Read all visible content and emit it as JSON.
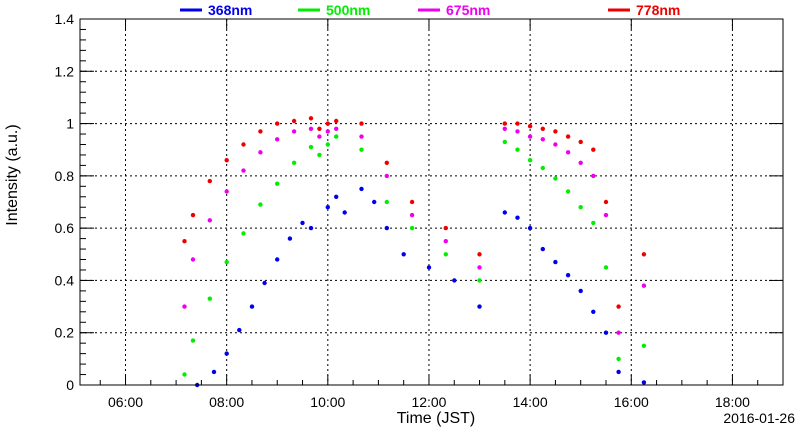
{
  "chart_data": {
    "type": "scatter",
    "xlabel": "Time (JST)",
    "ylabel": "Intensity (a.u.)",
    "date_label": "2016-01-26",
    "xlim": [
      "05:06",
      "19:00"
    ],
    "ylim": [
      0,
      1.4
    ],
    "x_ticks": [
      "06:00",
      "08:00",
      "10:00",
      "12:00",
      "14:00",
      "16:00",
      "18:00"
    ],
    "y_ticks": [
      "0",
      "0.2",
      "0.4",
      "0.6",
      "0.8",
      "1",
      "1.2",
      "1.4"
    ],
    "grid": true,
    "legend_position": "top",
    "series": [
      {
        "name": "368nm",
        "color": "#0000ee",
        "points": [
          [
            "07:25",
            0.0
          ],
          [
            "07:45",
            0.05
          ],
          [
            "08:00",
            0.12
          ],
          [
            "08:15",
            0.21
          ],
          [
            "08:30",
            0.3
          ],
          [
            "08:45",
            0.39
          ],
          [
            "09:00",
            0.48
          ],
          [
            "09:15",
            0.56
          ],
          [
            "09:30",
            0.62
          ],
          [
            "09:40",
            0.6
          ],
          [
            "10:00",
            0.68
          ],
          [
            "10:10",
            0.72
          ],
          [
            "10:20",
            0.66
          ],
          [
            "10:40",
            0.75
          ],
          [
            "10:55",
            0.7
          ],
          [
            "11:10",
            0.6
          ],
          [
            "11:30",
            0.5
          ],
          [
            "12:00",
            0.45
          ],
          [
            "12:30",
            0.4
          ],
          [
            "13:00",
            0.3
          ],
          [
            "13:30",
            0.66
          ],
          [
            "13:45",
            0.64
          ],
          [
            "14:00",
            0.6
          ],
          [
            "14:15",
            0.52
          ],
          [
            "14:30",
            0.47
          ],
          [
            "14:45",
            0.42
          ],
          [
            "15:00",
            0.36
          ],
          [
            "15:15",
            0.28
          ],
          [
            "15:30",
            0.2
          ],
          [
            "15:45",
            0.05
          ],
          [
            "16:15",
            0.01
          ]
        ]
      },
      {
        "name": "500nm",
        "color": "#00ee00",
        "points": [
          [
            "07:10",
            0.04
          ],
          [
            "07:20",
            0.17
          ],
          [
            "07:40",
            0.33
          ],
          [
            "08:00",
            0.47
          ],
          [
            "08:20",
            0.58
          ],
          [
            "08:40",
            0.69
          ],
          [
            "09:00",
            0.77
          ],
          [
            "09:20",
            0.85
          ],
          [
            "09:40",
            0.91
          ],
          [
            "09:50",
            0.88
          ],
          [
            "10:00",
            0.92
          ],
          [
            "10:10",
            0.95
          ],
          [
            "10:40",
            0.9
          ],
          [
            "11:10",
            0.7
          ],
          [
            "11:40",
            0.6
          ],
          [
            "12:20",
            0.5
          ],
          [
            "13:00",
            0.4
          ],
          [
            "13:30",
            0.93
          ],
          [
            "13:45",
            0.9
          ],
          [
            "14:00",
            0.86
          ],
          [
            "14:15",
            0.83
          ],
          [
            "14:30",
            0.79
          ],
          [
            "14:45",
            0.74
          ],
          [
            "15:00",
            0.68
          ],
          [
            "15:15",
            0.62
          ],
          [
            "15:30",
            0.45
          ],
          [
            "15:45",
            0.1
          ],
          [
            "16:15",
            0.15
          ]
        ]
      },
      {
        "name": "675nm",
        "color": "#ee00ee",
        "points": [
          [
            "07:10",
            0.3
          ],
          [
            "07:20",
            0.48
          ],
          [
            "07:40",
            0.63
          ],
          [
            "08:00",
            0.74
          ],
          [
            "08:20",
            0.82
          ],
          [
            "08:40",
            0.89
          ],
          [
            "09:00",
            0.94
          ],
          [
            "09:20",
            0.97
          ],
          [
            "09:40",
            0.98
          ],
          [
            "09:50",
            0.95
          ],
          [
            "10:00",
            0.97
          ],
          [
            "10:10",
            0.98
          ],
          [
            "10:40",
            0.95
          ],
          [
            "11:10",
            0.8
          ],
          [
            "11:40",
            0.65
          ],
          [
            "12:20",
            0.55
          ],
          [
            "13:00",
            0.45
          ],
          [
            "13:30",
            0.98
          ],
          [
            "13:45",
            0.97
          ],
          [
            "14:00",
            0.95
          ],
          [
            "14:15",
            0.94
          ],
          [
            "14:30",
            0.92
          ],
          [
            "14:45",
            0.89
          ],
          [
            "15:00",
            0.85
          ],
          [
            "15:15",
            0.8
          ],
          [
            "15:30",
            0.65
          ],
          [
            "15:45",
            0.2
          ],
          [
            "16:15",
            0.38
          ]
        ]
      },
      {
        "name": "778nm",
        "color": "#ee0000",
        "points": [
          [
            "07:10",
            0.55
          ],
          [
            "07:20",
            0.65
          ],
          [
            "07:40",
            0.78
          ],
          [
            "08:00",
            0.86
          ],
          [
            "08:20",
            0.92
          ],
          [
            "08:40",
            0.97
          ],
          [
            "09:00",
            1.0
          ],
          [
            "09:20",
            1.01
          ],
          [
            "09:40",
            1.02
          ],
          [
            "09:50",
            0.98
          ],
          [
            "10:00",
            1.0
          ],
          [
            "10:10",
            1.01
          ],
          [
            "10:40",
            1.0
          ],
          [
            "11:10",
            0.85
          ],
          [
            "11:40",
            0.7
          ],
          [
            "12:20",
            0.6
          ],
          [
            "13:00",
            0.5
          ],
          [
            "13:30",
            1.0
          ],
          [
            "13:45",
            1.0
          ],
          [
            "14:00",
            0.99
          ],
          [
            "14:15",
            0.98
          ],
          [
            "14:30",
            0.97
          ],
          [
            "14:45",
            0.95
          ],
          [
            "15:00",
            0.93
          ],
          [
            "15:15",
            0.9
          ],
          [
            "15:30",
            0.7
          ],
          [
            "15:45",
            0.3
          ],
          [
            "16:15",
            0.5
          ]
        ]
      }
    ]
  }
}
